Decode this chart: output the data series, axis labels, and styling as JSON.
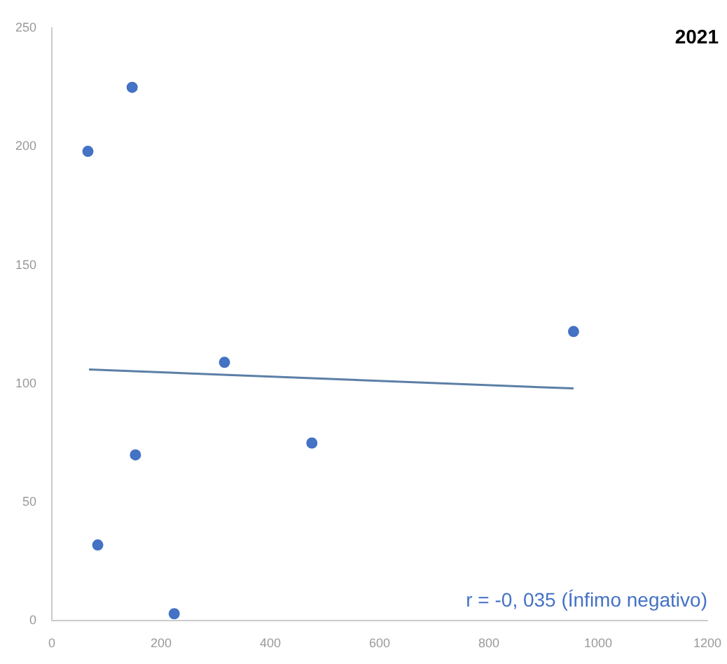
{
  "chart_data": {
    "type": "scatter",
    "title": "2021",
    "x": [
      66,
      147,
      84,
      153,
      224,
      316,
      476,
      955
    ],
    "series": [
      {
        "type": "scatter",
        "color": "#4472c4",
        "marker": "circle",
        "values": [
          198,
          225,
          32,
          70,
          3,
          109,
          75,
          122
        ]
      },
      {
        "type": "line",
        "color": "#5b7fa6",
        "marker": "none",
        "x": [
          68,
          955
        ],
        "values": [
          106,
          98
        ]
      }
    ],
    "xlim": [
      0,
      1200
    ],
    "xticks": [
      0,
      200,
      400,
      600,
      800,
      1000,
      1200
    ],
    "ylim": [
      0,
      250
    ],
    "yticks": [
      0,
      50,
      100,
      150,
      200,
      250
    ],
    "grid": false,
    "legend": false,
    "annotations": [
      "r = -0, 035 (Ínfimo  negativo)"
    ]
  }
}
